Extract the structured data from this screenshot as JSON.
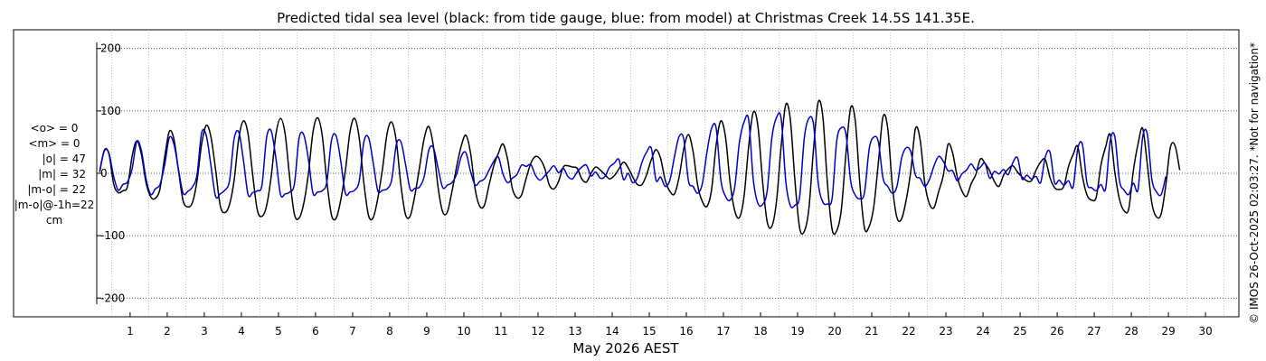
{
  "chart_data": {
    "type": "line",
    "title": "Predicted tidal sea level (black: from tide gauge, blue: from model) at Christmas Creek 14.5S 141.35E.",
    "xlabel": "May 2026 AEST",
    "ylabel": "",
    "ylim": [
      -230,
      230
    ],
    "xlim": [
      0.6,
      31.4
    ],
    "yticks": [
      -200,
      -100,
      0,
      100,
      200
    ],
    "xticks": [
      1,
      2,
      3,
      4,
      5,
      6,
      7,
      8,
      9,
      10,
      11,
      12,
      13,
      14,
      15,
      16,
      17,
      18,
      19,
      20,
      21,
      22,
      23,
      24,
      25,
      26,
      27,
      28,
      29,
      30
    ],
    "grid": true,
    "stats": [
      "<o> = 0",
      "<m> = 0",
      "|o| = 47",
      "|m| = 32",
      "|m-o| = 22",
      "|m-o|@-1h=22",
      "cm"
    ],
    "side_note": "© IMOS 26-Oct-2025 02:03:27. *Not for navigation*",
    "series": [
      {
        "name": "tide gauge",
        "color": "#000000",
        "start_day": 0.68,
        "step_days": 0.125,
        "values": [
          2,
          37,
          31,
          -17,
          -31,
          -28,
          -21,
          28,
          52,
          30,
          -15,
          -38,
          -40,
          -25,
          25,
          67,
          55,
          4,
          -44,
          -54,
          -47,
          -12,
          47,
          77,
          58,
          6,
          -52,
          -63,
          -50,
          -11,
          56,
          84,
          63,
          -2,
          -59,
          -69,
          -52,
          -5,
          62,
          88,
          63,
          -8,
          -66,
          -72,
          -49,
          -2,
          66,
          89,
          61,
          -13,
          -67,
          -72,
          -43,
          4,
          67,
          88,
          56,
          -17,
          -68,
          -71,
          -40,
          7,
          64,
          82,
          51,
          -21,
          -67,
          -68,
          -35,
          10,
          56,
          75,
          43,
          -23,
          -62,
          -62,
          -29,
          11,
          44,
          61,
          33,
          -26,
          -53,
          -51,
          -19,
          12,
          32,
          47,
          22,
          -24,
          -39,
          -35,
          -8,
          16,
          27,
          23,
          8,
          -19,
          -25,
          -13,
          10,
          12,
          10,
          8,
          -9,
          -14,
          0,
          10,
          5,
          -2,
          -9,
          -4,
          7,
          18,
          9,
          -6,
          -18,
          -18,
          -2,
          22,
          38,
          24,
          -11,
          -29,
          -33,
          -6,
          39,
          62,
          35,
          -19,
          -45,
          -53,
          -26,
          46,
          84,
          58,
          -15,
          -60,
          -71,
          -37,
          43,
          98,
          76,
          -13,
          -78,
          -85,
          -46,
          43,
          110,
          86,
          -14,
          -88,
          -93,
          -57,
          40,
          114,
          91,
          -16,
          -90,
          -92,
          -58,
          32,
          105,
          84,
          -17,
          -88,
          -85,
          -53,
          18,
          91,
          72,
          -20,
          -71,
          -73,
          -42,
          5,
          72,
          54,
          -16,
          -49,
          -55,
          -29,
          -3,
          46,
          33,
          -6,
          -28,
          -37,
          -17,
          -2,
          23,
          16,
          4,
          -13,
          -21,
          -3,
          7,
          12,
          2,
          -6,
          -12,
          -12,
          5,
          18,
          22,
          -7,
          -23,
          -26,
          -21,
          11,
          30,
          43,
          -5,
          -35,
          -43,
          -38,
          13,
          42,
          62,
          2,
          -42,
          -60,
          -57,
          4,
          47,
          72,
          15,
          -48,
          -70,
          -65,
          -19,
          42,
          44,
          5
        ]
      },
      {
        "name": "model",
        "color": "#0000cd",
        "start_day": 0.68,
        "step_days": 0.125,
        "values": [
          4,
          36,
          32,
          -5,
          -27,
          -18,
          -14,
          8,
          51,
          36,
          -9,
          -34,
          -25,
          -18,
          13,
          57,
          47,
          6,
          -32,
          -29,
          -22,
          -2,
          65,
          60,
          12,
          -37,
          -33,
          -27,
          -12,
          55,
          66,
          21,
          -34,
          -31,
          -28,
          -19,
          57,
          68,
          24,
          -34,
          -33,
          -30,
          -17,
          56,
          62,
          24,
          -32,
          -30,
          -28,
          -14,
          53,
          60,
          20,
          -32,
          -30,
          -27,
          -12,
          51,
          57,
          17,
          -28,
          -27,
          -25,
          -10,
          46,
          50,
          13,
          -26,
          -24,
          -22,
          -5,
          37,
          41,
          8,
          -23,
          -19,
          -15,
          -1,
          27,
          33,
          3,
          -19,
          -13,
          -9,
          5,
          19,
          26,
          -1,
          -15,
          -8,
          -2,
          13,
          11,
          14,
          -3,
          -11,
          -4,
          4,
          12,
          1,
          8,
          -5,
          -9,
          2,
          10,
          13,
          -4,
          2,
          -8,
          -5,
          10,
          16,
          22,
          -10,
          0,
          -15,
          -7,
          18,
          34,
          40,
          -11,
          -6,
          -21,
          -11,
          27,
          59,
          55,
          -12,
          -21,
          -32,
          -17,
          34,
          72,
          72,
          -10,
          -37,
          -43,
          -22,
          49,
          82,
          86,
          -10,
          -48,
          -50,
          -28,
          56,
          89,
          88,
          -12,
          -52,
          -51,
          -37,
          56,
          88,
          78,
          -15,
          -46,
          -49,
          -40,
          52,
          73,
          63,
          -12,
          -35,
          -41,
          -31,
          39,
          58,
          50,
          -8,
          -21,
          -32,
          -21,
          24,
          41,
          34,
          -3,
          -8,
          -21,
          -10,
          12,
          27,
          19,
          4,
          4,
          -12,
          -1,
          5,
          15,
          5,
          10,
          16,
          -8,
          3,
          -1,
          6,
          -2,
          17,
          25,
          -9,
          -3,
          -9,
          -5,
          -15,
          26,
          34,
          -15,
          -11,
          -19,
          -12,
          -22,
          39,
          46,
          -16,
          -23,
          -28,
          -18,
          -25,
          52,
          59,
          -12,
          -27,
          -34,
          -16,
          -26,
          58,
          63,
          -10,
          -30,
          -34,
          -5
        ]
      }
    ]
  }
}
